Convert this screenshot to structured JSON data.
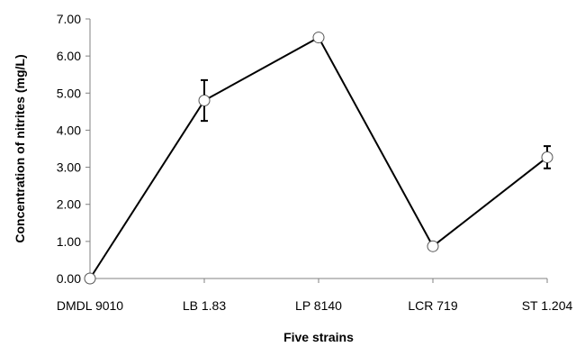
{
  "chart_data": {
    "type": "line",
    "title": "",
    "xlabel": "Five strains",
    "ylabel": "Concentration of nitrites (mg/L)",
    "categories": [
      "DMDL 9010",
      "LB 1.83",
      "LP 8140",
      "LCR 719",
      "ST 1.204"
    ],
    "series": [
      {
        "values": [
          0.0,
          4.8,
          6.5,
          0.87,
          3.27
        ],
        "error": [
          0.0,
          0.55,
          0.0,
          0.0,
          0.3
        ]
      }
    ],
    "ylim": [
      0,
      7
    ],
    "yticks": [
      "0.00",
      "1.00",
      "2.00",
      "3.00",
      "4.00",
      "5.00",
      "6.00",
      "7.00"
    ],
    "grid": false,
    "legend": "none",
    "colors": {
      "line": "#000000",
      "marker_fill": "#ffffff",
      "axis": "#808080"
    }
  }
}
